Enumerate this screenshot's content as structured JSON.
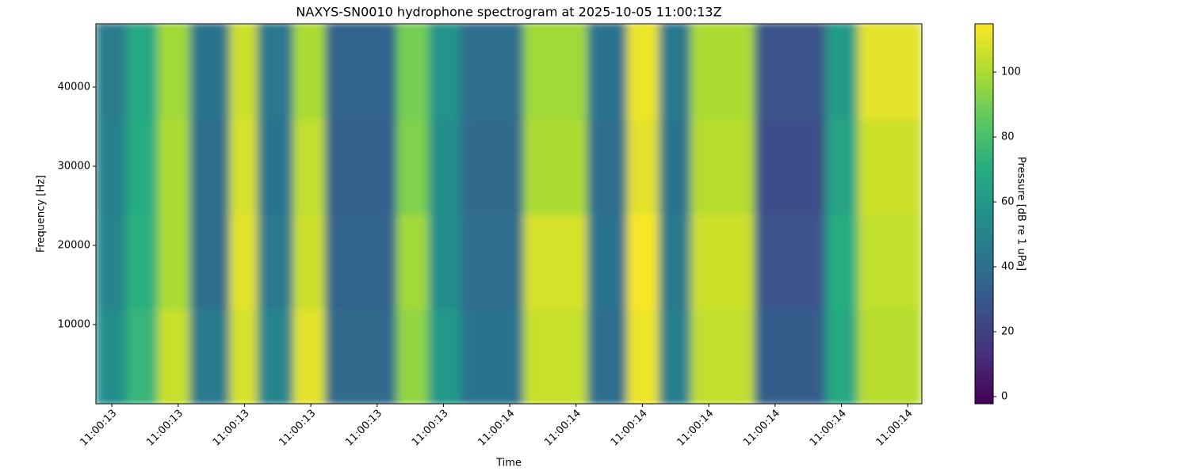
{
  "chart_data": {
    "type": "heatmap",
    "title": "NAXYS-SN0010 hydrophone spectrogram at 2025-10-05 11:00:13Z",
    "xlabel": "Time",
    "ylabel": "Frequency [Hz]",
    "colorbar_label": "Pressure [dB re 1 uPa]",
    "colormap": "viridis",
    "x_edges": [
      13.064,
      13.134,
      13.206,
      13.278,
      13.368,
      13.431,
      13.512,
      13.584,
      13.746,
      13.818,
      13.89,
      14.033,
      14.177,
      14.267,
      14.339,
      14.411,
      14.555,
      14.717,
      14.789,
      14.932
    ],
    "y_edges": [
      0,
      12000,
      24000,
      36000,
      48000
    ],
    "values": [
      [
        55,
        50,
        48,
        46
      ],
      [
        75,
        72,
        70,
        68
      ],
      [
        105,
        100,
        100,
        98
      ],
      [
        45,
        40,
        40,
        42
      ],
      [
        108,
        110,
        108,
        106
      ],
      [
        50,
        45,
        42,
        44
      ],
      [
        110,
        106,
        104,
        100
      ],
      [
        38,
        35,
        33,
        35
      ],
      [
        95,
        98,
        92,
        90
      ],
      [
        60,
        55,
        55,
        58
      ],
      [
        42,
        40,
        38,
        40
      ],
      [
        105,
        108,
        100,
        98
      ],
      [
        40,
        42,
        40,
        42
      ],
      [
        112,
        114,
        110,
        112
      ],
      [
        48,
        45,
        42,
        45
      ],
      [
        104,
        106,
        102,
        100
      ],
      [
        32,
        28,
        25,
        28
      ],
      [
        68,
        70,
        66,
        62
      ],
      [
        102,
        104,
        106,
        110
      ]
    ],
    "xlim": [
      13.064,
      14.932
    ],
    "xticks": [
      {
        "value": 13.1,
        "label": "11:00:13"
      },
      {
        "value": 13.25,
        "label": "11:00:13"
      },
      {
        "value": 13.4,
        "label": "11:00:13"
      },
      {
        "value": 13.55,
        "label": "11:00:13"
      },
      {
        "value": 13.7,
        "label": "11:00:13"
      },
      {
        "value": 13.85,
        "label": "11:00:13"
      },
      {
        "value": 14.0,
        "label": "11:00:14"
      },
      {
        "value": 14.15,
        "label": "11:00:14"
      },
      {
        "value": 14.3,
        "label": "11:00:14"
      },
      {
        "value": 14.45,
        "label": "11:00:14"
      },
      {
        "value": 14.6,
        "label": "11:00:14"
      },
      {
        "value": 14.75,
        "label": "11:00:14"
      },
      {
        "value": 14.9,
        "label": "11:00:14"
      }
    ],
    "ylim": [
      0,
      48000
    ],
    "yticks": [
      10000,
      20000,
      30000,
      40000
    ],
    "clim": [
      -2.2,
      114.9
    ],
    "cticks": [
      0,
      20,
      40,
      60,
      80,
      100
    ]
  }
}
